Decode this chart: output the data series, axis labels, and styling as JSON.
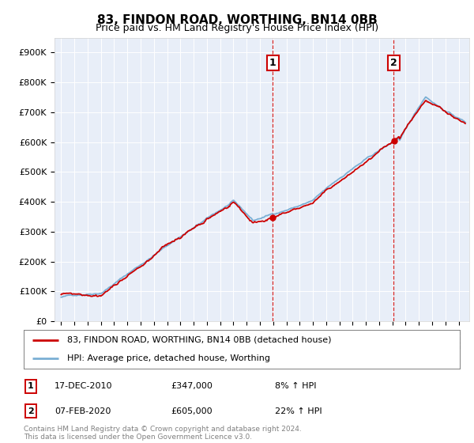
{
  "title": "83, FINDON ROAD, WORTHING, BN14 0BB",
  "subtitle": "Price paid vs. HM Land Registry's House Price Index (HPI)",
  "ylabel_ticks": [
    "£0",
    "£100K",
    "£200K",
    "£300K",
    "£400K",
    "£500K",
    "£600K",
    "£700K",
    "£800K",
    "£900K"
  ],
  "ytick_values": [
    0,
    100,
    200,
    300,
    400,
    500,
    600,
    700,
    800,
    900
  ],
  "ylim": [
    0,
    950
  ],
  "plot_bg": "#e8eef8",
  "sale1_year": 2010.96,
  "sale1_price": 347,
  "sale2_year": 2020.1,
  "sale2_price": 605,
  "legend_line1": "83, FINDON ROAD, WORTHING, BN14 0BB (detached house)",
  "legend_line2": "HPI: Average price, detached house, Worthing",
  "table_row1": [
    "1",
    "17-DEC-2010",
    "£347,000",
    "8% ↑ HPI"
  ],
  "table_row2": [
    "2",
    "07-FEB-2020",
    "£605,000",
    "22% ↑ HPI"
  ],
  "footer": "Contains HM Land Registry data © Crown copyright and database right 2024.\nThis data is licensed under the Open Government Licence v3.0.",
  "red_color": "#cc0000",
  "blue_color": "#7bafd4"
}
